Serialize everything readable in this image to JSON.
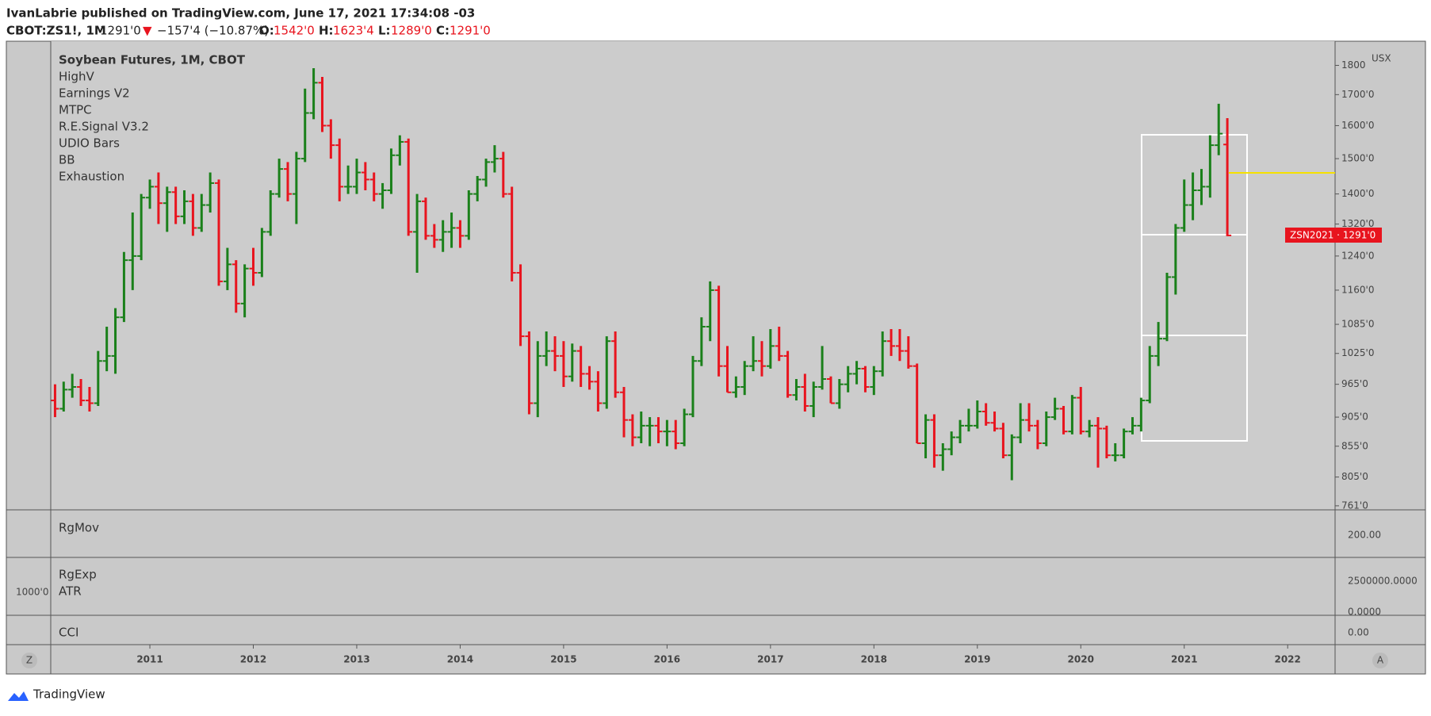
{
  "header": {
    "line1": "IvanLabrie published on TradingView.com, June 17, 2021 17:34:08 -03",
    "symbol": "CBOT:ZS1!, 1M",
    "last": "1291'0",
    "arrow": "▼",
    "change": "−157'4 (−10.87%)",
    "o_label": "O:",
    "o": "1542'0",
    "h_label": "H:",
    "h": "1623'4",
    "l_label": "L:",
    "l": "1289'0",
    "c_label": "C:",
    "c": "1291'0"
  },
  "legend": [
    "Soybean Futures, 1M, CBOT",
    "HighV",
    "Earnings V2",
    "MTPC",
    "R.E.Signal V3.2",
    "UDIO Bars",
    "BB",
    "Exhaustion"
  ],
  "currency": "USX",
  "price_label": "ZSN2021 · 1291'0",
  "panes": {
    "rgmov": {
      "name": "RgMov",
      "tick": "200.00"
    },
    "rgexp": {
      "name": "RgExp",
      "name2": "ATR",
      "left_tick": "1000'0",
      "ticks": [
        "2500000.0000",
        "0.0000"
      ]
    },
    "cci": {
      "name": "CCI",
      "tick": "0.00"
    }
  },
  "buttons": [
    "Z",
    "A"
  ],
  "footer": "TradingView",
  "chart_data": {
    "type": "ohlc",
    "ylim": [
      755,
      1887
    ],
    "log_scale": true,
    "up_color": "#1a801a",
    "down_color": "#e8141e",
    "yticks": [
      1800,
      {
        "value": 1700,
        "label": "1700'0"
      },
      {
        "value": 1600,
        "label": "1600'0"
      },
      {
        "value": 1500,
        "label": "1500'0"
      },
      {
        "value": 1400,
        "label": "1400'0"
      },
      {
        "value": 1320,
        "label": "1320'0"
      },
      {
        "value": 1240,
        "label": "1240'0"
      },
      {
        "value": 1160,
        "label": "1160'0"
      },
      {
        "value": 1085,
        "label": "1085'0"
      },
      {
        "value": 1025,
        "label": "1025'0"
      },
      {
        "value": 965,
        "label": "965'0"
      },
      {
        "value": 905,
        "label": "905'0"
      },
      {
        "value": 855,
        "label": "855'0"
      },
      {
        "value": 805,
        "label": "805'0"
      },
      {
        "value": 761,
        "label": "761'0"
      }
    ],
    "categories": [
      null,
      null,
      null,
      null,
      null,
      null,
      null,
      null,
      null,
      null,
      null,
      "2011",
      null,
      null,
      null,
      null,
      null,
      null,
      null,
      null,
      null,
      null,
      null,
      "2012",
      null,
      null,
      null,
      null,
      null,
      null,
      null,
      null,
      null,
      null,
      null,
      "2013",
      null,
      null,
      null,
      null,
      null,
      null,
      null,
      null,
      null,
      null,
      null,
      "2014",
      null,
      null,
      null,
      null,
      null,
      null,
      null,
      null,
      null,
      null,
      null,
      "2015",
      null,
      null,
      null,
      null,
      null,
      null,
      null,
      null,
      null,
      null,
      null,
      "2016",
      null,
      null,
      null,
      null,
      null,
      null,
      null,
      null,
      null,
      null,
      null,
      "2017",
      null,
      null,
      null,
      null,
      null,
      null,
      null,
      null,
      null,
      null,
      null,
      "2018",
      null,
      null,
      null,
      null,
      null,
      null,
      null,
      null,
      null,
      null,
      null,
      "2019",
      null,
      null,
      null,
      null,
      null,
      null,
      null,
      null,
      null,
      null,
      null,
      "2020",
      null,
      null,
      null,
      null,
      null,
      null,
      null,
      null,
      null,
      null,
      null,
      "2021",
      null,
      null,
      null,
      null,
      null,
      null,
      null,
      null,
      null,
      null,
      null,
      "2022",
      null,
      null,
      null,
      null,
      null
    ],
    "series": [
      {
        "name": "Soybean Futures, 1M, CBOT",
        "values": [
          [
            935,
            965,
            905,
            920
          ],
          [
            920,
            970,
            915,
            955
          ],
          [
            955,
            985,
            940,
            960
          ],
          [
            960,
            975,
            925,
            935
          ],
          [
            935,
            960,
            915,
            930
          ],
          [
            930,
            1030,
            925,
            1010
          ],
          [
            1010,
            1080,
            990,
            1020
          ],
          [
            1020,
            1120,
            985,
            1100
          ],
          [
            1100,
            1250,
            1090,
            1230
          ],
          [
            1230,
            1350,
            1160,
            1240
          ],
          [
            1240,
            1400,
            1230,
            1390
          ],
          [
            1390,
            1440,
            1360,
            1420
          ],
          [
            1420,
            1460,
            1320,
            1375
          ],
          [
            1375,
            1420,
            1300,
            1405
          ],
          [
            1405,
            1420,
            1320,
            1340
          ],
          [
            1340,
            1410,
            1320,
            1380
          ],
          [
            1380,
            1400,
            1290,
            1310
          ],
          [
            1310,
            1400,
            1300,
            1370
          ],
          [
            1370,
            1460,
            1350,
            1430
          ],
          [
            1430,
            1440,
            1170,
            1180
          ],
          [
            1180,
            1260,
            1160,
            1220
          ],
          [
            1220,
            1230,
            1110,
            1130
          ],
          [
            1130,
            1220,
            1100,
            1210
          ],
          [
            1210,
            1260,
            1170,
            1200
          ],
          [
            1200,
            1310,
            1190,
            1300
          ],
          [
            1300,
            1410,
            1290,
            1400
          ],
          [
            1400,
            1500,
            1390,
            1470
          ],
          [
            1470,
            1490,
            1380,
            1400
          ],
          [
            1400,
            1520,
            1320,
            1500
          ],
          [
            1500,
            1720,
            1490,
            1640
          ],
          [
            1640,
            1790,
            1620,
            1740
          ],
          [
            1740,
            1760,
            1580,
            1600
          ],
          [
            1600,
            1620,
            1500,
            1540
          ],
          [
            1540,
            1560,
            1380,
            1420
          ],
          [
            1420,
            1480,
            1400,
            1420
          ],
          [
            1420,
            1500,
            1400,
            1460
          ],
          [
            1460,
            1490,
            1410,
            1440
          ],
          [
            1440,
            1460,
            1380,
            1400
          ],
          [
            1400,
            1430,
            1360,
            1410
          ],
          [
            1410,
            1530,
            1400,
            1510
          ],
          [
            1510,
            1570,
            1480,
            1550
          ],
          [
            1550,
            1560,
            1290,
            1300
          ],
          [
            1300,
            1400,
            1200,
            1380
          ],
          [
            1380,
            1390,
            1280,
            1290
          ],
          [
            1290,
            1320,
            1260,
            1280
          ],
          [
            1280,
            1330,
            1250,
            1300
          ],
          [
            1300,
            1350,
            1260,
            1310
          ],
          [
            1310,
            1330,
            1260,
            1290
          ],
          [
            1290,
            1410,
            1280,
            1400
          ],
          [
            1400,
            1450,
            1380,
            1440
          ],
          [
            1440,
            1500,
            1420,
            1490
          ],
          [
            1490,
            1540,
            1460,
            1500
          ],
          [
            1500,
            1520,
            1390,
            1400
          ],
          [
            1400,
            1420,
            1180,
            1200
          ],
          [
            1200,
            1220,
            1040,
            1060
          ],
          [
            1060,
            1070,
            910,
            930
          ],
          [
            930,
            1050,
            905,
            1020
          ],
          [
            1020,
            1070,
            1000,
            1030
          ],
          [
            1030,
            1060,
            990,
            1020
          ],
          [
            1020,
            1050,
            960,
            980
          ],
          [
            980,
            1045,
            970,
            1030
          ],
          [
            1030,
            1040,
            960,
            985
          ],
          [
            985,
            1000,
            955,
            970
          ],
          [
            970,
            990,
            915,
            930
          ],
          [
            930,
            1060,
            920,
            1050
          ],
          [
            1050,
            1070,
            940,
            950
          ],
          [
            950,
            960,
            870,
            900
          ],
          [
            900,
            910,
            855,
            870
          ],
          [
            870,
            915,
            860,
            890
          ],
          [
            890,
            905,
            855,
            890
          ],
          [
            890,
            905,
            860,
            880
          ],
          [
            880,
            900,
            855,
            880
          ],
          [
            880,
            900,
            850,
            860
          ],
          [
            860,
            920,
            855,
            910
          ],
          [
            910,
            1020,
            905,
            1010
          ],
          [
            1010,
            1100,
            1000,
            1080
          ],
          [
            1080,
            1180,
            1050,
            1160
          ],
          [
            1160,
            1170,
            980,
            1000
          ],
          [
            1000,
            1040,
            950,
            950
          ],
          [
            950,
            980,
            940,
            960
          ],
          [
            960,
            1010,
            945,
            1000
          ],
          [
            1000,
            1060,
            990,
            1010
          ],
          [
            1010,
            1050,
            980,
            1000
          ],
          [
            1000,
            1075,
            995,
            1040
          ],
          [
            1040,
            1080,
            1010,
            1020
          ],
          [
            1020,
            1030,
            940,
            945
          ],
          [
            945,
            975,
            935,
            960
          ],
          [
            960,
            985,
            915,
            925
          ],
          [
            925,
            970,
            905,
            960
          ],
          [
            960,
            1040,
            955,
            975
          ],
          [
            975,
            980,
            930,
            930
          ],
          [
            930,
            975,
            920,
            965
          ],
          [
            965,
            1000,
            950,
            985
          ],
          [
            985,
            1010,
            965,
            995
          ],
          [
            995,
            1000,
            950,
            960
          ],
          [
            960,
            1000,
            945,
            990
          ],
          [
            990,
            1070,
            980,
            1050
          ],
          [
            1050,
            1075,
            1020,
            1040
          ],
          [
            1040,
            1075,
            1010,
            1030
          ],
          [
            1030,
            1060,
            995,
            1000
          ],
          [
            1000,
            1005,
            860,
            860
          ],
          [
            860,
            910,
            835,
            900
          ],
          [
            900,
            910,
            820,
            840
          ],
          [
            840,
            860,
            815,
            850
          ],
          [
            850,
            880,
            840,
            870
          ],
          [
            870,
            900,
            860,
            890
          ],
          [
            890,
            920,
            880,
            890
          ],
          [
            890,
            935,
            885,
            915
          ],
          [
            915,
            930,
            890,
            895
          ],
          [
            895,
            915,
            880,
            885
          ],
          [
            885,
            895,
            835,
            840
          ],
          [
            840,
            875,
            800,
            870
          ],
          [
            870,
            930,
            860,
            900
          ],
          [
            900,
            930,
            880,
            890
          ],
          [
            890,
            900,
            850,
            860
          ],
          [
            860,
            915,
            855,
            905
          ],
          [
            905,
            940,
            900,
            920
          ],
          [
            920,
            925,
            875,
            880
          ],
          [
            880,
            945,
            875,
            940
          ],
          [
            940,
            960,
            875,
            880
          ],
          [
            880,
            900,
            870,
            890
          ],
          [
            890,
            905,
            820,
            885
          ],
          [
            885,
            890,
            835,
            840
          ],
          [
            840,
            860,
            830,
            840
          ],
          [
            840,
            885,
            835,
            880
          ],
          [
            880,
            905,
            875,
            890
          ],
          [
            890,
            940,
            880,
            935
          ],
          [
            935,
            1040,
            930,
            1020
          ],
          [
            1020,
            1090,
            1000,
            1055
          ],
          [
            1055,
            1200,
            1050,
            1190
          ],
          [
            1190,
            1320,
            1150,
            1310
          ],
          [
            1310,
            1440,
            1300,
            1370
          ],
          [
            1370,
            1460,
            1330,
            1410
          ],
          [
            1410,
            1470,
            1370,
            1420
          ],
          [
            1420,
            1570,
            1390,
            1540
          ],
          [
            1540,
            1670,
            1510,
            1575
          ],
          [
            1542,
            1623.5,
            1289,
            1291
          ],
          null,
          null,
          null,
          null,
          null,
          null,
          null,
          null,
          null,
          null,
          null,
          null
        ]
      }
    ]
  }
}
